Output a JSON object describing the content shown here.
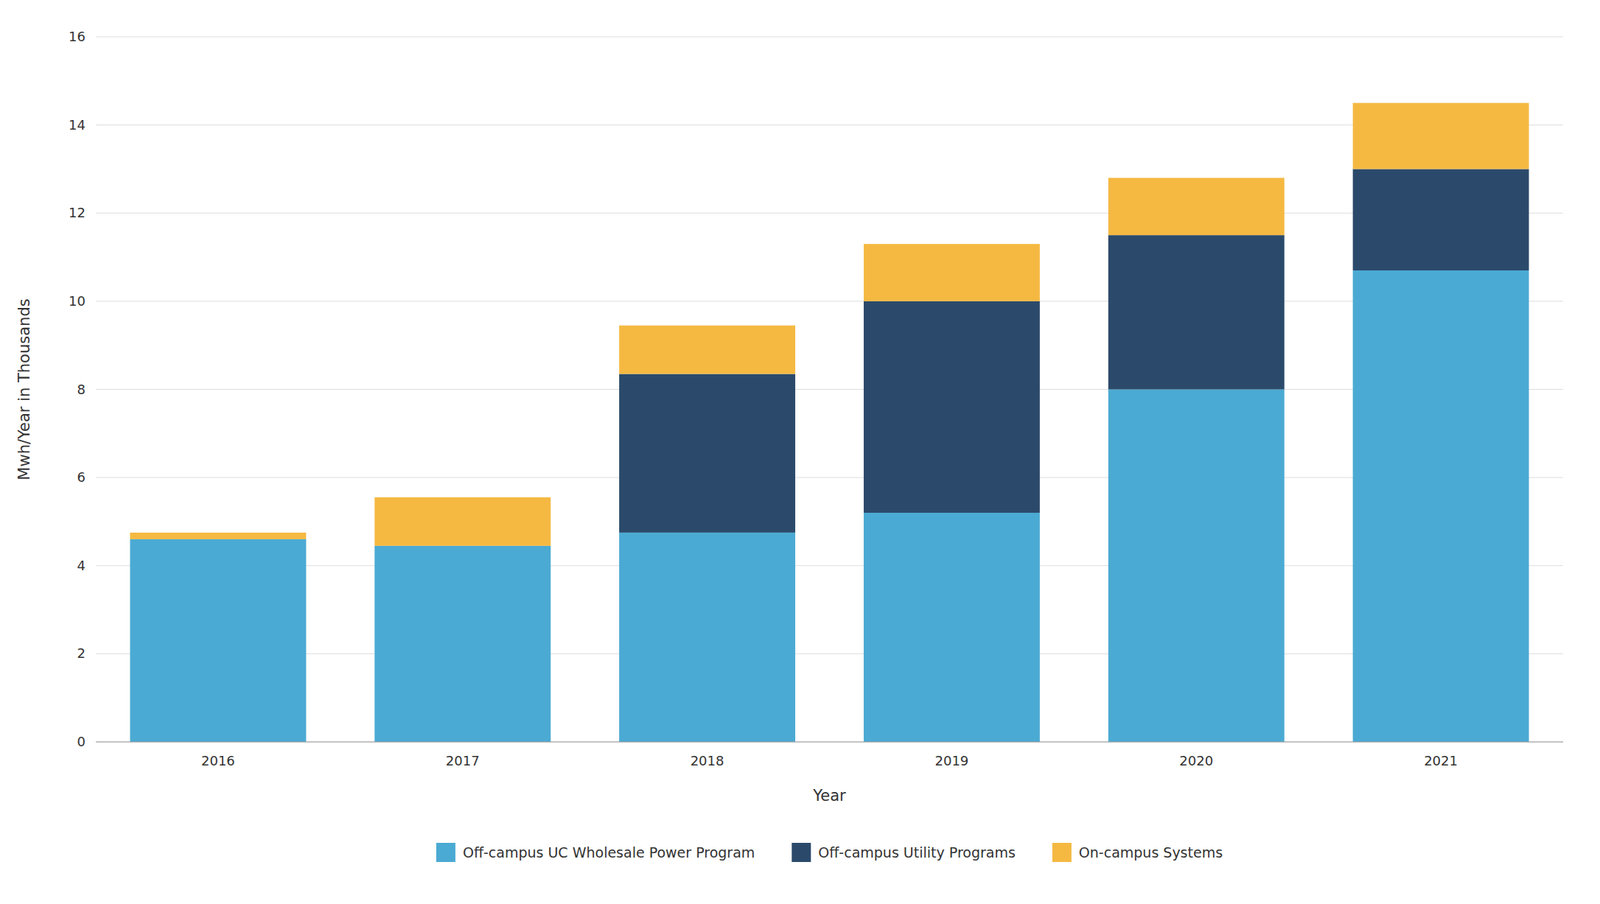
{
  "chart_data": {
    "type": "bar",
    "stacked": true,
    "x_label": "Year",
    "y_label": "Mwh/Year in Thousands",
    "categories": [
      "2016",
      "2017",
      "2018",
      "2019",
      "2020",
      "2021"
    ],
    "series": [
      {
        "name": "Off-campus UC Wholesale Power Program",
        "color": "#4BAAD3",
        "values": [
          4.6,
          4.45,
          4.75,
          5.2,
          8.0,
          10.7
        ]
      },
      {
        "name": "Off-campus Utility Programs",
        "color": "#2B4A6B",
        "values": [
          0.0,
          0.0,
          3.6,
          4.8,
          3.5,
          2.3
        ]
      },
      {
        "name": "On-campus Systems",
        "color": "#F5B942",
        "values": [
          0.15,
          1.1,
          1.1,
          1.3,
          1.3,
          1.5
        ]
      }
    ],
    "ylim": [
      0,
      16
    ],
    "yticks": [
      0,
      2,
      4,
      6,
      8,
      10,
      12,
      14,
      16
    ],
    "grid": true,
    "legend": "bottom"
  }
}
